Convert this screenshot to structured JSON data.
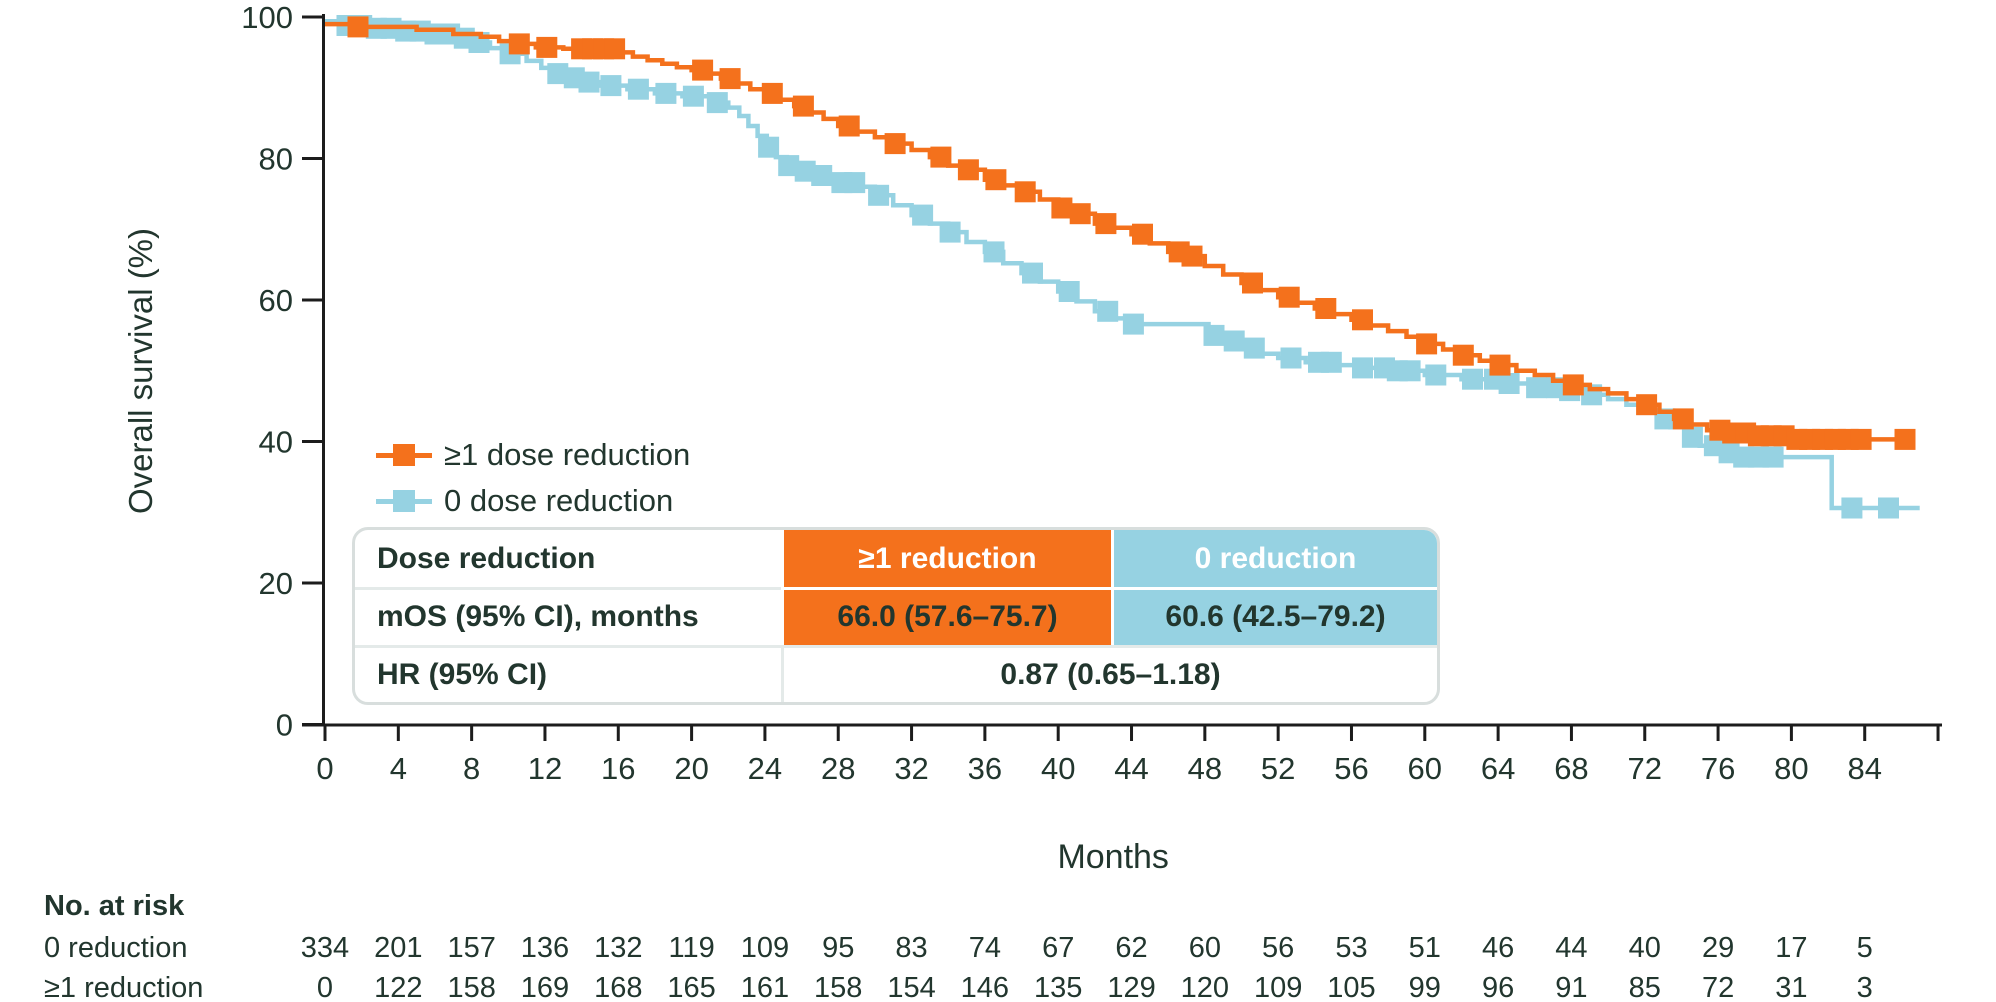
{
  "page": {
    "background": "#ffffff",
    "text_color": "#22362e",
    "axis_color": "#1c1c1c"
  },
  "chart_data": {
    "type": "line",
    "subtype": "kaplan-meier-step",
    "title": "",
    "xlabel": "Months",
    "ylabel": "Overall survival (%)",
    "xlim": [
      0,
      88
    ],
    "ylim": [
      0,
      100
    ],
    "x_ticks": [
      0,
      4,
      8,
      12,
      16,
      20,
      24,
      28,
      32,
      36,
      40,
      44,
      48,
      52,
      56,
      60,
      64,
      68,
      72,
      76,
      80,
      84
    ],
    "x_ticks_unlabeled": [
      88
    ],
    "y_ticks": [
      0,
      20,
      40,
      60,
      80,
      100
    ],
    "grid": "off",
    "legend_position": "inside-upper-left-below-curves",
    "series": [
      {
        "name": "0 dose reduction",
        "color": "#96d2e2",
        "steps": [
          [
            0,
            99.4
          ],
          [
            1,
            98.8
          ],
          [
            2.5,
            98.4
          ],
          [
            4,
            98
          ],
          [
            5.5,
            97.6
          ],
          [
            7,
            97
          ],
          [
            8,
            96.4
          ],
          [
            9,
            95.6
          ],
          [
            10,
            94.8
          ],
          [
            11,
            93.8
          ],
          [
            11.8,
            92.8
          ],
          [
            12.6,
            92
          ],
          [
            13.4,
            91.4
          ],
          [
            14.2,
            90.8
          ],
          [
            15,
            90.3
          ],
          [
            16.5,
            89.8
          ],
          [
            18,
            89.2
          ],
          [
            19.5,
            88.8
          ],
          [
            21,
            87.9
          ],
          [
            22,
            87.2
          ],
          [
            22.6,
            86
          ],
          [
            23.1,
            84.6
          ],
          [
            23.6,
            83.2
          ],
          [
            24.1,
            81.6
          ],
          [
            24.6,
            80.2
          ],
          [
            25.2,
            79
          ],
          [
            26,
            78.2
          ],
          [
            27,
            77.6
          ],
          [
            28,
            76.6
          ],
          [
            29,
            76
          ],
          [
            30,
            74.8
          ],
          [
            31,
            73.4
          ],
          [
            32,
            72
          ],
          [
            33,
            70.8
          ],
          [
            34,
            69.6
          ],
          [
            35,
            68.2
          ],
          [
            36,
            66.8
          ],
          [
            37,
            65.2
          ],
          [
            38,
            63.8
          ],
          [
            39,
            62.6
          ],
          [
            40,
            61.2
          ],
          [
            41,
            59.8
          ],
          [
            42,
            58.4
          ],
          [
            43,
            57.4
          ],
          [
            43.8,
            56.6
          ],
          [
            47.5,
            56.6
          ],
          [
            48.2,
            55
          ],
          [
            49,
            54.2
          ],
          [
            50,
            53.2
          ],
          [
            51,
            52.4
          ],
          [
            52,
            51.8
          ],
          [
            53.5,
            51.2
          ],
          [
            55,
            50.8
          ],
          [
            56.5,
            50.4
          ],
          [
            58,
            50
          ],
          [
            60,
            49.4
          ],
          [
            62,
            48.8
          ],
          [
            64,
            48.2
          ],
          [
            66,
            47.6
          ],
          [
            67.5,
            47.2
          ],
          [
            69,
            46.6
          ],
          [
            70,
            46
          ],
          [
            71,
            45.2
          ],
          [
            72,
            44.4
          ],
          [
            72.7,
            43.2
          ],
          [
            73.4,
            42
          ],
          [
            74.2,
            40.6
          ],
          [
            75,
            39.4
          ],
          [
            76,
            38.4
          ],
          [
            77,
            37.8
          ],
          [
            82,
            37.8
          ],
          [
            82.2,
            30.6
          ],
          [
            87,
            30.6
          ]
        ],
        "censor_marks": [
          1.2,
          2,
          2.8,
          3.6,
          4.4,
          5.2,
          6,
          6.8,
          7.6,
          8.4,
          10.1,
          12.7,
          13.6,
          14.4,
          15.6,
          17.1,
          18.6,
          20.1,
          21.4,
          24.2,
          25.3,
          26.2,
          27.1,
          28.2,
          28.9,
          30.2,
          32.6,
          34.1,
          36.5,
          38.6,
          40.6,
          42.7,
          44.1,
          48.5,
          49.6,
          50.7,
          52.7,
          54.2,
          54.9,
          56.6,
          57.8,
          58.5,
          59.2,
          60.6,
          62.6,
          63.8,
          64.6,
          66.1,
          67.2,
          67.9,
          69.1,
          73.1,
          74.6,
          75.8,
          76.6,
          77.4,
          78.2,
          79,
          83.3,
          85.3
        ]
      },
      {
        "name": "≥1 dose reduction",
        "color": "#f4711c",
        "steps": [
          [
            0,
            99
          ],
          [
            1.5,
            98.6
          ],
          [
            5,
            98.2
          ],
          [
            7,
            97.6
          ],
          [
            8.5,
            97.2
          ],
          [
            9.5,
            96.6
          ],
          [
            10.5,
            96.2
          ],
          [
            11.5,
            95.7
          ],
          [
            13,
            95.5
          ],
          [
            16,
            95
          ],
          [
            16.8,
            94.4
          ],
          [
            17.6,
            93.9
          ],
          [
            18.4,
            93.4
          ],
          [
            19.2,
            92.9
          ],
          [
            20,
            92.5
          ],
          [
            20.8,
            92
          ],
          [
            21.6,
            91.3
          ],
          [
            22.4,
            90.6
          ],
          [
            23.2,
            89.8
          ],
          [
            24,
            89.2
          ],
          [
            24.8,
            88.3
          ],
          [
            25.6,
            87.4
          ],
          [
            26.4,
            86.5
          ],
          [
            27.2,
            85.6
          ],
          [
            28,
            84.6
          ],
          [
            29,
            83.8
          ],
          [
            30,
            83
          ],
          [
            31,
            82.1
          ],
          [
            32,
            81.2
          ],
          [
            33,
            80.2
          ],
          [
            34,
            79
          ],
          [
            34.8,
            78.4
          ],
          [
            36,
            77
          ],
          [
            37,
            76.2
          ],
          [
            38,
            75.3
          ],
          [
            39,
            74.2
          ],
          [
            40,
            73
          ],
          [
            41,
            72.2
          ],
          [
            42,
            70.8
          ],
          [
            43,
            70.2
          ],
          [
            44,
            69.3
          ],
          [
            45,
            68
          ],
          [
            46,
            66.8
          ],
          [
            47,
            66.2
          ],
          [
            48,
            64.8
          ],
          [
            49,
            63.6
          ],
          [
            50,
            62.4
          ],
          [
            51,
            61.4
          ],
          [
            52,
            60.4
          ],
          [
            53,
            59.6
          ],
          [
            54,
            58.8
          ],
          [
            55,
            58
          ],
          [
            56,
            57.2
          ],
          [
            57,
            56.4
          ],
          [
            58,
            55.6
          ],
          [
            59,
            54.8
          ],
          [
            60,
            53.8
          ],
          [
            61,
            53
          ],
          [
            62,
            52.2
          ],
          [
            63,
            51.4
          ],
          [
            64,
            50.8
          ],
          [
            65,
            50
          ],
          [
            66,
            49.4
          ],
          [
            67,
            48.6
          ],
          [
            68,
            48
          ],
          [
            69,
            47.4
          ],
          [
            70,
            46.8
          ],
          [
            71,
            46
          ],
          [
            72,
            45.2
          ],
          [
            72.8,
            44.2
          ],
          [
            73.6,
            43.2
          ],
          [
            74.4,
            42.4
          ],
          [
            75.4,
            41.6
          ],
          [
            76.5,
            41.2
          ],
          [
            78,
            40.8
          ],
          [
            80,
            40.3
          ],
          [
            86.5,
            40.3
          ]
        ],
        "censor_marks": [
          1.8,
          10.6,
          12.1,
          14,
          14.6,
          15.2,
          15.8,
          20.6,
          22.1,
          24.4,
          26.1,
          28.6,
          31.1,
          33.6,
          35.1,
          36.6,
          38.2,
          40.2,
          41.2,
          42.6,
          44.6,
          46.6,
          47.3,
          50.6,
          52.6,
          54.6,
          56.6,
          60.1,
          62.1,
          64.1,
          68.1,
          72.1,
          74.1,
          76.1,
          76.8,
          77.5,
          78.2,
          78.9,
          79.6,
          80.3,
          81,
          81.7,
          82.4,
          83.1,
          83.8,
          86.2
        ]
      }
    ],
    "at_risk": {
      "title": "No. at risk",
      "months": [
        0,
        4,
        8,
        12,
        16,
        20,
        24,
        28,
        32,
        36,
        40,
        44,
        48,
        52,
        56,
        60,
        64,
        68,
        72,
        76,
        80,
        84
      ],
      "rows": [
        {
          "label": "0 reduction",
          "values": [
            334,
            201,
            157,
            136,
            132,
            119,
            109,
            95,
            83,
            74,
            67,
            62,
            60,
            56,
            53,
            51,
            46,
            44,
            40,
            29,
            17,
            5
          ]
        },
        {
          "label": "≥1 reduction",
          "values": [
            0,
            122,
            158,
            169,
            168,
            165,
            161,
            158,
            154,
            146,
            135,
            129,
            120,
            109,
            105,
            99,
            96,
            91,
            85,
            72,
            31,
            3
          ]
        }
      ]
    }
  },
  "stats_table": {
    "header": {
      "col1": "Dose reduction",
      "col2": "≥1 reduction",
      "col3": "0 reduction"
    },
    "mos_row": {
      "label": "mOS (95% CI), months",
      "ge1": "66.0 (57.6–75.7)",
      "zero": "60.6 (42.5–79.2)"
    },
    "hr_row": {
      "label": "HR (95% CI)",
      "value": "0.87 (0.65–1.18)"
    },
    "colors": {
      "ge1_bg": "#f4711c",
      "zero_bg": "#96d2e2"
    }
  }
}
